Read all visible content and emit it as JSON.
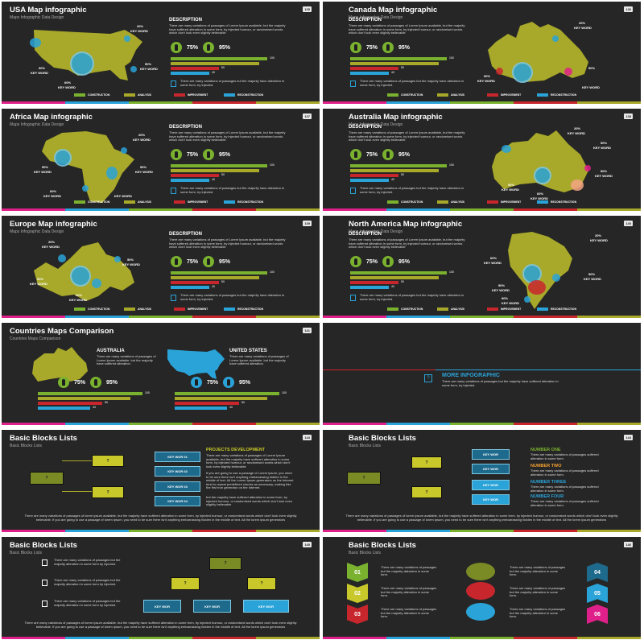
{
  "colors": {
    "green": "#7ab12f",
    "olive": "#a8a82a",
    "red": "#c8262d",
    "blue": "#2aa3d8",
    "pink": "#e0208a",
    "teal": "#18a6b0",
    "dark": "#262626"
  },
  "strip": [
    "#e0208a",
    "#2aa3d8",
    "#7ab12f",
    "#c8262d",
    "#a8a82a"
  ],
  "common": {
    "subtitle": "Maps Infographic Data Design",
    "desc_heading": "DESCRIPTION",
    "desc_text": "There are many variations of passages of Lorem Ipsum available, but the majority have suffered alteration in some form, by injected humour, or randomised words which don't look even slightly believable",
    "stat1": "75%",
    "stat2": "95%",
    "bar_labels": [
      "100",
      "50",
      "40"
    ],
    "note": "There are many variations of passages but the majority have alteration in some form, by injected.",
    "legend": [
      "CONSTRUCTION",
      "ANALYSIS",
      "IMPROVEMENT",
      "RECONSTRUCTION"
    ],
    "kw": "KEY WORD",
    "p20": "20%",
    "p50": "50%",
    "p60": "60%",
    "p90": "90%"
  },
  "slides": [
    {
      "title": "USA Map infographic",
      "num": "135"
    },
    {
      "title": "Canada Map infographic",
      "num": "136"
    },
    {
      "title": "Africa Map infographic",
      "num": "137"
    },
    {
      "title": "Australia Map infographic",
      "num": "138"
    },
    {
      "title": "Europe Map infographic",
      "num": "139"
    },
    {
      "title": "North America Map infographic",
      "num": "140"
    },
    {
      "title": "Countries Maps Comparison",
      "num": "141",
      "sub": "Countries Maps Comparison",
      "left_country": "AUSTRALIA",
      "right_country": "UNITED STATES",
      "comp_text": "There are many variations of passages of Lorem Ipsum available, but the majority have suffered alteration."
    },
    {
      "more_title": "MORE INFOGRAPHIC",
      "more_text": "There are many variations of passages but the majority have suffered alteration in some form, by injected."
    },
    {
      "title": "Basic Blocks Lists",
      "num": "143",
      "sub": "Basic Blocks Lists",
      "kw_boxes": [
        "KEY WOR 01",
        "KEY WOR 02",
        "KEY WOR 03",
        "KEY WOR 04"
      ],
      "proj_title": "PROJECTS DEVELOPMENT",
      "proj_text1": "There are many variations of passages of Lorem Ipsum available, but the majority have suffered alteration in some form, by injected humour, or randomised words which don't look even slightly believable",
      "proj_text2": "If you are going to use a passage of Lorem Ipsum, you need to be sure there isn't anything embarrassing hidden in the middle of text. All the Lorem Ipsum generators on the Internet tend to repeat predefined chunks as necessary, making this the first true generator on the Internet.",
      "proj_text3": "but the majority have suffered alteration in some form, by injected humour, or randomised words which don't look even slightly believable",
      "bottom": "There are many variations of passages of lorem ipsum available, but the majority have suffered alteration in some form, by injected humour, or randomised words which don't look even slightly believable. If you are going to use a passage of lorem ipsum, you need to be sure there isn't anything embarrassing hidden in the middle of text. All the lorem ipsum generators"
    },
    {
      "title": "Basic Blocks Lists",
      "num": "144",
      "sub": "Basic Blocks Lists",
      "kw_boxes": [
        "KEY WOR",
        "KEY WOR",
        "KEY WOR",
        "KEY WOR"
      ],
      "numbers": [
        "NUMBER ONE",
        "NUMBER TWO",
        "NUMBER THREE",
        "NUMBER FOUR"
      ],
      "num_text": "There are many variations of passages suffered alteration in some form.",
      "bottom": "There are many variations of passages of lorem ipsum available, but the majority have suffered alteration in some form, by injected humour, or randomised words which don't look even slightly believable. If you are going to use a passage of lorem ipsum, you need to be sure there isn't anything embarrassing hidden in the middle of text. All the lorem ipsum generators"
    },
    {
      "title": "Basic Blocks Lists",
      "num": "145",
      "sub": "Basic Blocks Lists",
      "rows_text": "There are many variations of passages but the majority alteration in some form by injected.",
      "kw_boxes": [
        "KEY WOR",
        "KEY WOR",
        "KEY WOR"
      ],
      "bottom": "There are many variations of passages of lorem ipsum available, but the majority have suffered alteration in some form, by injected humour, or randomised words which don't look even slightly believable. If you are going to use a passage of lorem ipsum, you need to be sure there isn't anything embarrassing hidden in the middle of text. All the lorem ipsum generators"
    },
    {
      "title": "Basic Blocks Lists",
      "num": "146",
      "sub": "Basic Blocks Lists",
      "nums": [
        "01",
        "02",
        "03",
        "04",
        "05",
        "06"
      ],
      "item_text": "There are many variations of passages but the majority alteration in some form."
    }
  ]
}
